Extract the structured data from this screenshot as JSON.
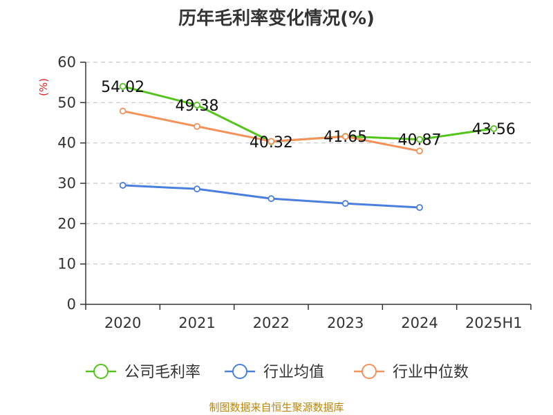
{
  "chart_data": {
    "type": "line",
    "title": "历年毛利率变化情况(%)",
    "ylabel": "(%)",
    "xlabel": "",
    "categories": [
      "2020",
      "2021",
      "2022",
      "2023",
      "2024",
      "2025H1"
    ],
    "ylim": [
      0,
      60
    ],
    "yticks": [
      0,
      10,
      20,
      30,
      40,
      50,
      60
    ],
    "grid": true,
    "legend_position": "bottom",
    "series": [
      {
        "name": "公司毛利率",
        "color": "#52c41a",
        "values": [
          54.02,
          49.38,
          40.32,
          41.65,
          40.87,
          43.56
        ],
        "labels": [
          "54.02",
          "49.38",
          "40.32",
          "41.65",
          "40.87",
          "43.56"
        ]
      },
      {
        "name": "行业均值",
        "color": "#4a7fdc",
        "values": [
          29.5,
          28.6,
          26.2,
          25.0,
          24.0,
          null
        ]
      },
      {
        "name": "行业中位数",
        "color": "#f5925a",
        "values": [
          47.9,
          44.1,
          40.4,
          41.6,
          38.0,
          null
        ]
      }
    ]
  },
  "source": "制图数据来自恒生聚源数据库"
}
